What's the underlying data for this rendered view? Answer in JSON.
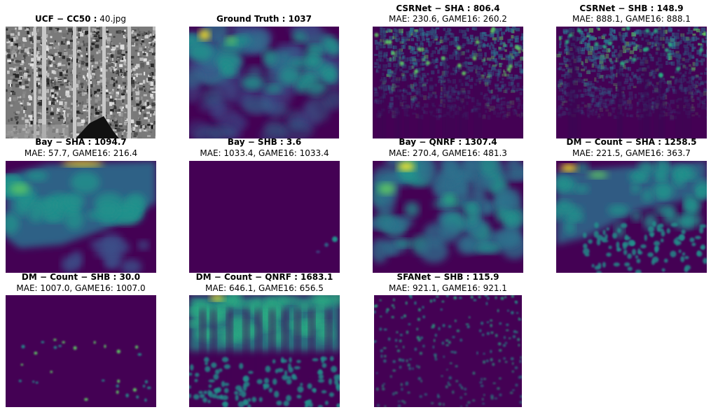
{
  "chart_data": {
    "type": "heatmap",
    "description_panels": [
      {
        "id": "input",
        "title_bold": "UCF − CC50 :",
        "title_rest": " 40.jpg",
        "subtitle": "",
        "kind": "photo"
      },
      {
        "id": "gt",
        "title_bold": "Ground Truth : 1037",
        "title_rest": "",
        "subtitle": "",
        "kind": "density",
        "count": 1037
      },
      {
        "id": "csrnet-sha",
        "title_bold": "CSRNet − SHA : 806.4",
        "title_rest": "",
        "subtitle": "MAE: 230.6, GAME16: 260.2",
        "kind": "density",
        "count": 806.4,
        "mae": 230.6,
        "game16": 260.2
      },
      {
        "id": "csrnet-shb",
        "title_bold": "CSRNet − SHB : 148.9",
        "title_rest": "",
        "subtitle": "MAE: 888.1, GAME16: 888.1",
        "kind": "density",
        "count": 148.9,
        "mae": 888.1,
        "game16": 888.1
      },
      {
        "id": "bay-sha",
        "title_bold": "Bay − SHA : 1094.7",
        "title_rest": "",
        "subtitle": "MAE: 57.7, GAME16: 216.4",
        "kind": "density",
        "count": 1094.7,
        "mae": 57.7,
        "game16": 216.4
      },
      {
        "id": "bay-shb",
        "title_bold": "Bay − SHB : 3.6",
        "title_rest": "",
        "subtitle": "MAE: 1033.4, GAME16: 1033.4",
        "kind": "density",
        "count": 3.6,
        "mae": 1033.4,
        "game16": 1033.4
      },
      {
        "id": "bay-qnrf",
        "title_bold": "Bay − QNRF : 1307.4",
        "title_rest": "",
        "subtitle": "MAE: 270.4, GAME16: 481.3",
        "kind": "density",
        "count": 1307.4,
        "mae": 270.4,
        "game16": 481.3
      },
      {
        "id": "dm-sha",
        "title_bold": "DM − Count − SHA : 1258.5",
        "title_rest": "",
        "subtitle": "MAE: 221.5, GAME16: 363.7",
        "kind": "density",
        "count": 1258.5,
        "mae": 221.5,
        "game16": 363.7
      },
      {
        "id": "dm-shb",
        "title_bold": "DM − Count − SHB : 30.0",
        "title_rest": "",
        "subtitle": "MAE: 1007.0, GAME16: 1007.0",
        "kind": "density",
        "count": 30.0,
        "mae": 1007.0,
        "game16": 1007.0
      },
      {
        "id": "dm-qnrf",
        "title_bold": "DM − Count − QNRF : 1683.1",
        "title_rest": "",
        "subtitle": "MAE: 646.1, GAME16: 656.5",
        "kind": "density",
        "count": 1683.1,
        "mae": 646.1,
        "game16": 656.5
      },
      {
        "id": "sfanet-shb",
        "title_bold": "SFANet − SHB : 115.9",
        "title_rest": "",
        "subtitle": "MAE: 921.1, GAME16: 921.1",
        "kind": "density",
        "count": 115.9,
        "mae": 921.1,
        "game16": 921.1
      }
    ],
    "colormap": "viridis",
    "colors": {
      "low": "#440154",
      "mid": "#21918c",
      "high": "#fde725"
    }
  }
}
